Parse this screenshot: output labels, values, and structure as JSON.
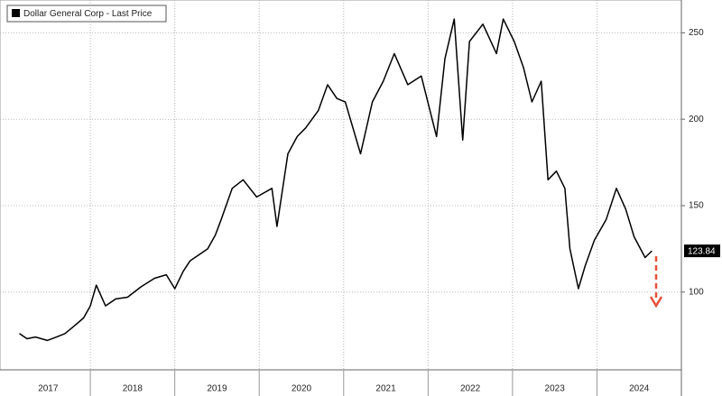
{
  "chart_data": {
    "type": "line",
    "series": [
      {
        "name": "Dollar General Corp - Last Price",
        "color": "#000000",
        "x": [
          2017.16,
          2017.25,
          2017.35,
          2017.49,
          2017.6,
          2017.7,
          2017.8,
          2017.92,
          2018.0,
          2018.07,
          2018.18,
          2018.3,
          2018.44,
          2018.6,
          2018.76,
          2018.9,
          2019.0,
          2019.1,
          2019.18,
          2019.39,
          2019.48,
          2019.55,
          2019.68,
          2019.81,
          2019.97,
          2020.15,
          2020.21,
          2020.34,
          2020.45,
          2020.55,
          2020.7,
          2020.81,
          2020.92,
          2021.02,
          2021.2,
          2021.34,
          2021.47,
          2021.6,
          2021.76,
          2021.92,
          2022.1,
          2022.2,
          2022.31,
          2022.41,
          2022.49,
          2022.65,
          2022.81,
          2022.89,
          2023.02,
          2023.13,
          2023.23,
          2023.34,
          2023.42,
          2023.52,
          2023.62,
          2023.68,
          2023.78,
          2023.86,
          2023.97,
          2024.11,
          2024.23,
          2024.34,
          2024.44,
          2024.57,
          2024.65
        ],
        "values": [
          76,
          73,
          74,
          72,
          74,
          76,
          80,
          85,
          92,
          104,
          92,
          96,
          97,
          103,
          108,
          110,
          102,
          112,
          118,
          125,
          133,
          142,
          160,
          165,
          155,
          160,
          138,
          180,
          190,
          195,
          205,
          220,
          212,
          210,
          180,
          210,
          222,
          238,
          220,
          225,
          190,
          235,
          258,
          188,
          245,
          255,
          238,
          258,
          245,
          230,
          210,
          222,
          165,
          170,
          160,
          125,
          102,
          115,
          130,
          142,
          160,
          148,
          132,
          120,
          123.84
        ]
      }
    ],
    "xlim": [
      2016.93,
      2025.0
    ],
    "xticks": [
      {
        "value": 2017.5,
        "label": "2017"
      },
      {
        "value": 2018.5,
        "label": "2018"
      },
      {
        "value": 2019.5,
        "label": "2019"
      },
      {
        "value": 2020.5,
        "label": "2020"
      },
      {
        "value": 2021.5,
        "label": "2021"
      },
      {
        "value": 2022.5,
        "label": "2022"
      },
      {
        "value": 2023.5,
        "label": "2023"
      },
      {
        "value": 2024.5,
        "label": "2024"
      }
    ],
    "xgrid": [
      2018,
      2019,
      2020,
      2021,
      2022,
      2023,
      2024
    ],
    "ylim": [
      55,
      269
    ],
    "yticks": [
      100,
      150,
      200,
      250
    ],
    "grid": true
  }
}
